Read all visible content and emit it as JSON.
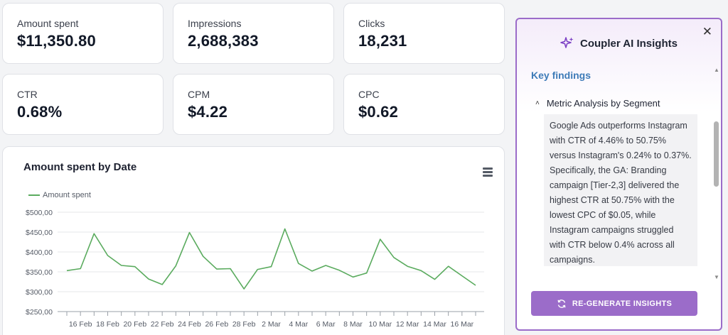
{
  "kpis": [
    {
      "label": "Amount spent",
      "value": "$11,350.80"
    },
    {
      "label": "Impressions",
      "value": "2,688,383"
    },
    {
      "label": "Clicks",
      "value": "18,231"
    },
    {
      "label": "CTR",
      "value": "0.68%"
    },
    {
      "label": "CPM",
      "value": "$4.22"
    },
    {
      "label": "CPC",
      "value": "$0.62"
    }
  ],
  "chart": {
    "menu_icon": "hamburger-menu-icon"
  },
  "chart_data": {
    "type": "line",
    "title": "Amount spent by Date",
    "xlabel": "",
    "ylabel": "",
    "legend": "top-left",
    "grid": true,
    "ylim": [
      250,
      500
    ],
    "yticks": [
      "$250,00",
      "$300,00",
      "$350,00",
      "$400,00",
      "$450,00",
      "$500,00"
    ],
    "xticks": [
      "16 Feb",
      "18 Feb",
      "20 Feb",
      "22 Feb",
      "24 Feb",
      "26 Feb",
      "28 Feb",
      "2 Mar",
      "4 Mar",
      "6 Mar",
      "8 Mar",
      "10 Mar",
      "12 Mar",
      "14 Mar",
      "16 Mar"
    ],
    "x": [
      "15 Feb",
      "16 Feb",
      "17 Feb",
      "18 Feb",
      "19 Feb",
      "20 Feb",
      "21 Feb",
      "22 Feb",
      "23 Feb",
      "24 Feb",
      "25 Feb",
      "26 Feb",
      "27 Feb",
      "28 Feb",
      "1 Mar",
      "2 Mar",
      "3 Mar",
      "4 Mar",
      "5 Mar",
      "6 Mar",
      "7 Mar",
      "8 Mar",
      "9 Mar",
      "10 Mar",
      "11 Mar",
      "12 Mar",
      "13 Mar",
      "14 Mar",
      "15 Mar",
      "16 Mar",
      "17 Mar"
    ],
    "series": [
      {
        "name": "Amount spent",
        "color": "#5aab5e",
        "values": [
          353,
          358,
          446,
          391,
          366,
          363,
          332,
          318,
          365,
          449,
          389,
          357,
          358,
          307,
          356,
          363,
          458,
          371,
          352,
          366,
          354,
          337,
          347,
          432,
          386,
          364,
          353,
          331,
          364,
          340,
          316
        ]
      }
    ]
  },
  "insights": {
    "title": "Coupler AI Insights",
    "close_label": "✕",
    "key_findings_label": "Key findings",
    "section_title": "Metric Analysis by Segment",
    "section_text": "Google Ads outperforms Instagram with CTR of 4.46% to 50.75% versus Instagram's 0.24% to 0.37%. Specifically, the GA: Branding campaign [Tier-2,3] delivered the highest CTR at 50.75% with the lowest CPC of $0.05, while Instagram campaigns struggled with CTR below 0.4% across all campaigns.",
    "regenerate_label": "RE-GENERATE INSIGHTS",
    "accent_color": "#9b6cc9",
    "heading_color": "#3e7bb8"
  }
}
